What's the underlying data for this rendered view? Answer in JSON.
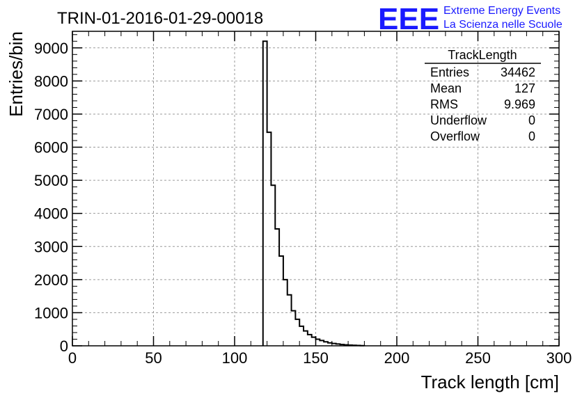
{
  "chart_data": {
    "type": "histogram",
    "title": "TRIN-01-2016-01-29-00018",
    "xlabel": "Track length [cm]",
    "ylabel": "Entries/bin",
    "xlim": [
      0,
      300
    ],
    "ylim": [
      0,
      9500
    ],
    "grid": true,
    "bin_width": 2.5,
    "x_ticks": [
      "0",
      "50",
      "100",
      "150",
      "200",
      "250",
      "300"
    ],
    "y_ticks": [
      "0",
      "1000",
      "2000",
      "3000",
      "4000",
      "5000",
      "6000",
      "7000",
      "8000",
      "9000"
    ],
    "bins_start": [
      117.5,
      120,
      122.5,
      125,
      127.5,
      130,
      132.5,
      135,
      137.5,
      140,
      142.5,
      145,
      147.5,
      150,
      152.5,
      155,
      157.5,
      160,
      162.5,
      165,
      167.5,
      170,
      172.5,
      175,
      177.5
    ],
    "values": [
      9200,
      6450,
      4850,
      3530,
      2710,
      2000,
      1540,
      1060,
      800,
      590,
      450,
      340,
      260,
      200,
      160,
      120,
      90,
      70,
      55,
      40,
      30,
      22,
      15,
      10,
      6
    ],
    "stats_box": {
      "name": "TrackLength",
      "rows": [
        {
          "label": "Entries",
          "value": "34462"
        },
        {
          "label": "Mean",
          "value": "127"
        },
        {
          "label": "RMS",
          "value": "9.969"
        },
        {
          "label": "Underflow",
          "value": "0"
        },
        {
          "label": "Overflow",
          "value": "0"
        }
      ]
    }
  },
  "branding": {
    "logo_text": "EEE",
    "line1": "Extreme Energy Events",
    "line2": "La Scienza nelle Scuole",
    "color": "#1a1aff"
  }
}
